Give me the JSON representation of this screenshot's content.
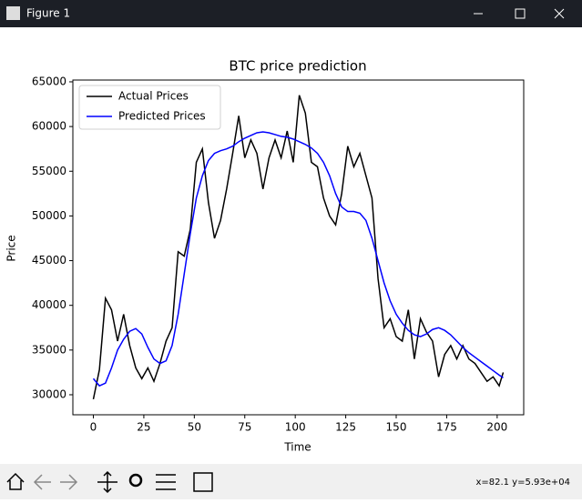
{
  "window": {
    "title": "Figure 1",
    "status": "x=82.1 y=5.93e+04"
  },
  "chart_data": {
    "type": "line",
    "title": "BTC price prediction",
    "x_label": "Time",
    "y_label": "Price",
    "x": [
      0,
      3,
      6,
      9,
      12,
      15,
      18,
      21,
      24,
      27,
      30,
      33,
      36,
      39,
      42,
      45,
      48,
      51,
      54,
      57,
      60,
      63,
      66,
      69,
      72,
      75,
      78,
      81,
      84,
      87,
      90,
      93,
      96,
      99,
      102,
      105,
      108,
      111,
      114,
      117,
      120,
      123,
      126,
      129,
      132,
      135,
      138,
      141,
      144,
      147,
      150,
      153,
      156,
      159,
      162,
      165,
      168,
      171,
      174,
      177,
      180,
      183,
      186,
      189,
      192,
      195,
      198,
      201,
      203
    ],
    "series": [
      {
        "name": "Actual Prices",
        "color": "#000000",
        "values": [
          29500,
          32800,
          40800,
          39500,
          36000,
          39000,
          35500,
          33000,
          31800,
          33000,
          31500,
          33500,
          36000,
          37500,
          46000,
          45500,
          48500,
          56000,
          57500,
          51500,
          47500,
          49500,
          53000,
          57000,
          61200,
          56500,
          58500,
          57000,
          53000,
          56500,
          58500,
          56500,
          59500,
          56000,
          63500,
          61500,
          56000,
          55500,
          52000,
          50000,
          49000,
          52500,
          57800,
          55500,
          57000,
          54500,
          52000,
          43000,
          37500,
          38500,
          36500,
          36000,
          39500,
          34000,
          38500,
          37000,
          36000,
          32000,
          34500,
          35500,
          34000,
          35500,
          34000,
          33500,
          32500,
          31500,
          32000,
          31000,
          32500
        ]
      },
      {
        "name": "Predicted Prices",
        "color": "#0000ff",
        "values": [
          31800,
          31000,
          31300,
          33000,
          35000,
          36200,
          37100,
          37400,
          36800,
          35300,
          34000,
          33500,
          33800,
          35500,
          39000,
          43500,
          48000,
          52000,
          54500,
          56200,
          57000,
          57300,
          57500,
          57800,
          58300,
          58700,
          59000,
          59300,
          59400,
          59300,
          59100,
          58900,
          58800,
          58600,
          58300,
          58000,
          57600,
          57000,
          56000,
          54500,
          52500,
          51000,
          50500,
          50500,
          50300,
          49500,
          47500,
          45000,
          42500,
          40500,
          39000,
          38000,
          37200,
          36700,
          36500,
          36800,
          37300,
          37500,
          37200,
          36700,
          36000,
          35300,
          34700,
          34200,
          33700,
          33200,
          32700,
          32200,
          31900
        ]
      }
    ],
    "xlim": [
      -10.15,
      213.15
    ],
    "ylim": [
      27760,
      65200
    ],
    "xticks": [
      0,
      25,
      50,
      75,
      100,
      125,
      150,
      175,
      200
    ],
    "yticks": [
      30000,
      35000,
      40000,
      45000,
      50000,
      55000,
      60000,
      65000
    ],
    "legend": "upper left"
  }
}
